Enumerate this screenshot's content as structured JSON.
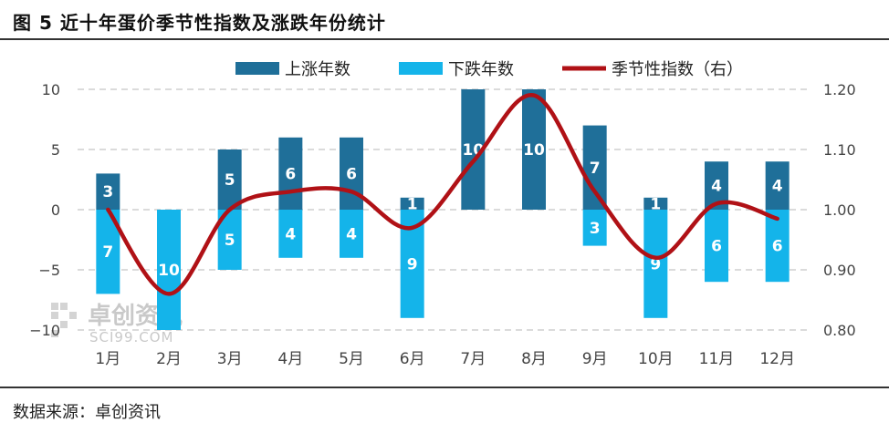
{
  "header": {
    "title": "图 5 近十年蛋价季节性指数及涨跌年份统计"
  },
  "footer": {
    "source": "数据来源：卓创资讯"
  },
  "watermark": {
    "name": "卓创资讯",
    "sub": "SCI99.COM"
  },
  "colors": {
    "up": "#1f6f99",
    "down": "#14b4ea",
    "index": "#b01116",
    "grid": "#cfcfcf"
  },
  "chart_data": {
    "type": "bar",
    "categories": [
      "1月",
      "2月",
      "3月",
      "4月",
      "5月",
      "6月",
      "7月",
      "8月",
      "9月",
      "10月",
      "11月",
      "12月"
    ],
    "series": [
      {
        "name": "上涨年数",
        "values": [
          3,
          0,
          5,
          6,
          6,
          1,
          10,
          10,
          7,
          1,
          4,
          4
        ],
        "axis": "left"
      },
      {
        "name": "下跌年数",
        "values": [
          7,
          10,
          5,
          4,
          4,
          9,
          0,
          0,
          3,
          9,
          6,
          6
        ],
        "axis": "left",
        "plotted_negative": true
      },
      {
        "name": "季节性指数（右）",
        "type": "line",
        "smooth": true,
        "axis": "right",
        "values": [
          1.0,
          0.86,
          1.0,
          1.03,
          1.03,
          0.97,
          1.08,
          1.19,
          1.03,
          0.92,
          1.01,
          0.985
        ]
      }
    ],
    "up_labels": [
      "3",
      "",
      "5",
      "6",
      "6",
      "1",
      "10",
      "10",
      "7",
      "1",
      "4",
      "4"
    ],
    "down_labels": [
      "7",
      "10",
      "5",
      "4",
      "4",
      "9",
      "",
      "",
      "3",
      "9",
      "6",
      "6"
    ],
    "y_left": {
      "ylim": [
        -10,
        10
      ],
      "ticks": [
        "10",
        "5",
        "0",
        "−5",
        "−10"
      ],
      "tick_values": [
        10,
        5,
        0,
        -5,
        -10
      ]
    },
    "y_right": {
      "ylim": [
        0.8,
        1.2
      ],
      "ticks": [
        "1.20",
        "1.10",
        "1.00",
        "0.90",
        "0.80"
      ],
      "tick_values": [
        1.2,
        1.1,
        1.0,
        0.9,
        0.8
      ]
    },
    "grid": "horizontal-dashed",
    "legend": "top-center"
  }
}
